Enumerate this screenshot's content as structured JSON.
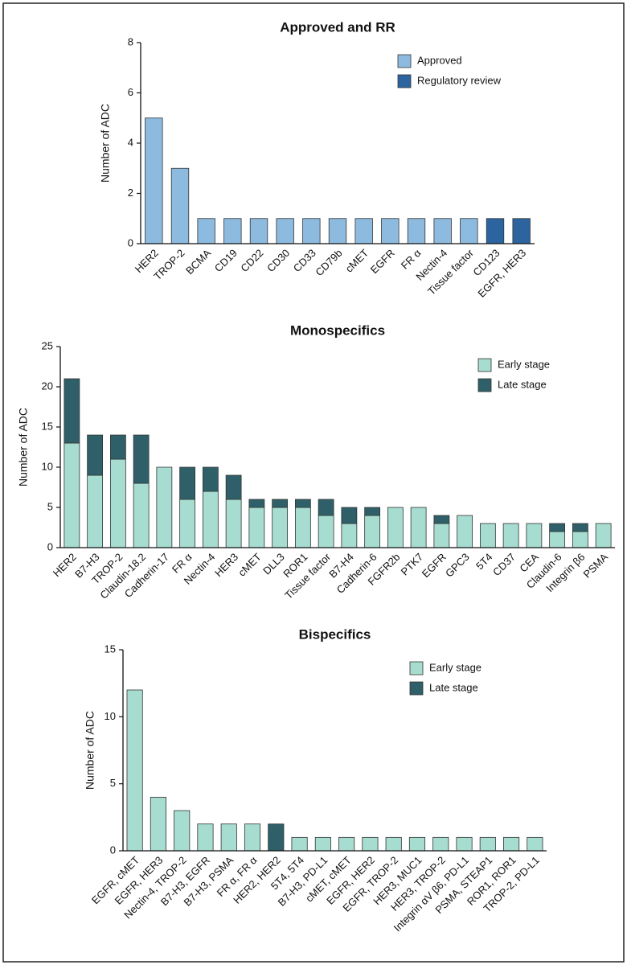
{
  "chart_data": [
    {
      "type": "bar",
      "stacked": true,
      "title": "Approved and RR",
      "y_label": "Number of ADC",
      "categories": [
        "HER2",
        "TROP-2",
        "BCMA",
        "CD19",
        "CD22",
        "CD30",
        "CD33",
        "CD79b",
        "cMET",
        "EGFR",
        "FR α",
        "Nectin-4",
        "Tissue factor",
        "CD123",
        "EGFR, HER3"
      ],
      "series": [
        {
          "name": "Approved",
          "color": "#8dbadf",
          "values": [
            5,
            3,
            1,
            1,
            1,
            1,
            1,
            1,
            1,
            1,
            1,
            1,
            1,
            null,
            null
          ]
        },
        {
          "name": "Regulatory review",
          "color": "#2c64a0",
          "values": [
            null,
            null,
            null,
            null,
            null,
            null,
            null,
            null,
            null,
            null,
            null,
            null,
            null,
            1,
            1
          ]
        }
      ],
      "ylim": [
        0,
        8
      ],
      "yticks": [
        0,
        2,
        4,
        6,
        8
      ],
      "legend": "upper-right"
    },
    {
      "type": "bar",
      "stacked": true,
      "title": "Monospecifics",
      "y_label": "Number of ADC",
      "categories": [
        "HER2",
        "B7-H3",
        "TROP-2",
        "Claudin-18.2",
        "Cadherin-17",
        "FR α",
        "Nectin-4",
        "HER3",
        "cMET",
        "DLL3",
        "ROR1",
        "Tissue factor",
        "B7-H4",
        "Cadherin-6",
        "FGFR2b",
        "PTK7",
        "EGFR",
        "GPC3",
        "5T4",
        "CD37",
        "CEA",
        "Claudin-6",
        "Integrin β6",
        "PSMA"
      ],
      "series": [
        {
          "name": "Early stage",
          "color": "#a6ddd0",
          "values": [
            13,
            9,
            11,
            8,
            10,
            6,
            7,
            6,
            5,
            5,
            5,
            4,
            3,
            4,
            5,
            5,
            3,
            4,
            3,
            3,
            3,
            2,
            2,
            3
          ]
        },
        {
          "name": "Late stage",
          "color": "#2f6069",
          "values": [
            8,
            5,
            3,
            6,
            null,
            4,
            3,
            3,
            1,
            1,
            1,
            2,
            2,
            1,
            null,
            null,
            1,
            null,
            null,
            null,
            null,
            1,
            1,
            null
          ]
        }
      ],
      "ylim": [
        0,
        25
      ],
      "yticks": [
        0,
        5,
        10,
        15,
        20,
        25
      ],
      "legend": "upper-right"
    },
    {
      "type": "bar",
      "stacked": true,
      "title": "Bispecifics",
      "y_label": "Number of ADC",
      "categories": [
        "EGFR, cMET",
        "EGFR, HER3",
        "Nectin-4, TROP-2",
        "B7-H3, EGFR",
        "B7-H3, PSMA",
        "FR α, FR α",
        "HER2, HER2",
        "5T4, 5T4",
        "B7-H3, PD-L1",
        "cMET, cMET",
        "EGFR, HER2",
        "EGFR, TROP-2",
        "HER3, MUC1",
        "HER3, TROP-2",
        "Integrin αV β6, PD-L1",
        "PSMA, STEAP1",
        "ROR1, ROR1",
        "TROP-2, PD-L1"
      ],
      "series": [
        {
          "name": "Early stage",
          "color": "#a6ddd0",
          "values": [
            12,
            4,
            3,
            2,
            2,
            2,
            null,
            1,
            1,
            1,
            1,
            1,
            1,
            1,
            1,
            1,
            1,
            1
          ]
        },
        {
          "name": "Late stage",
          "color": "#2f6069",
          "values": [
            null,
            null,
            null,
            null,
            null,
            null,
            2,
            null,
            null,
            null,
            null,
            null,
            null,
            null,
            null,
            null,
            null,
            null
          ]
        }
      ],
      "ylim": [
        0,
        15
      ],
      "yticks": [
        0,
        5,
        10,
        15
      ],
      "legend": "upper-right"
    }
  ]
}
